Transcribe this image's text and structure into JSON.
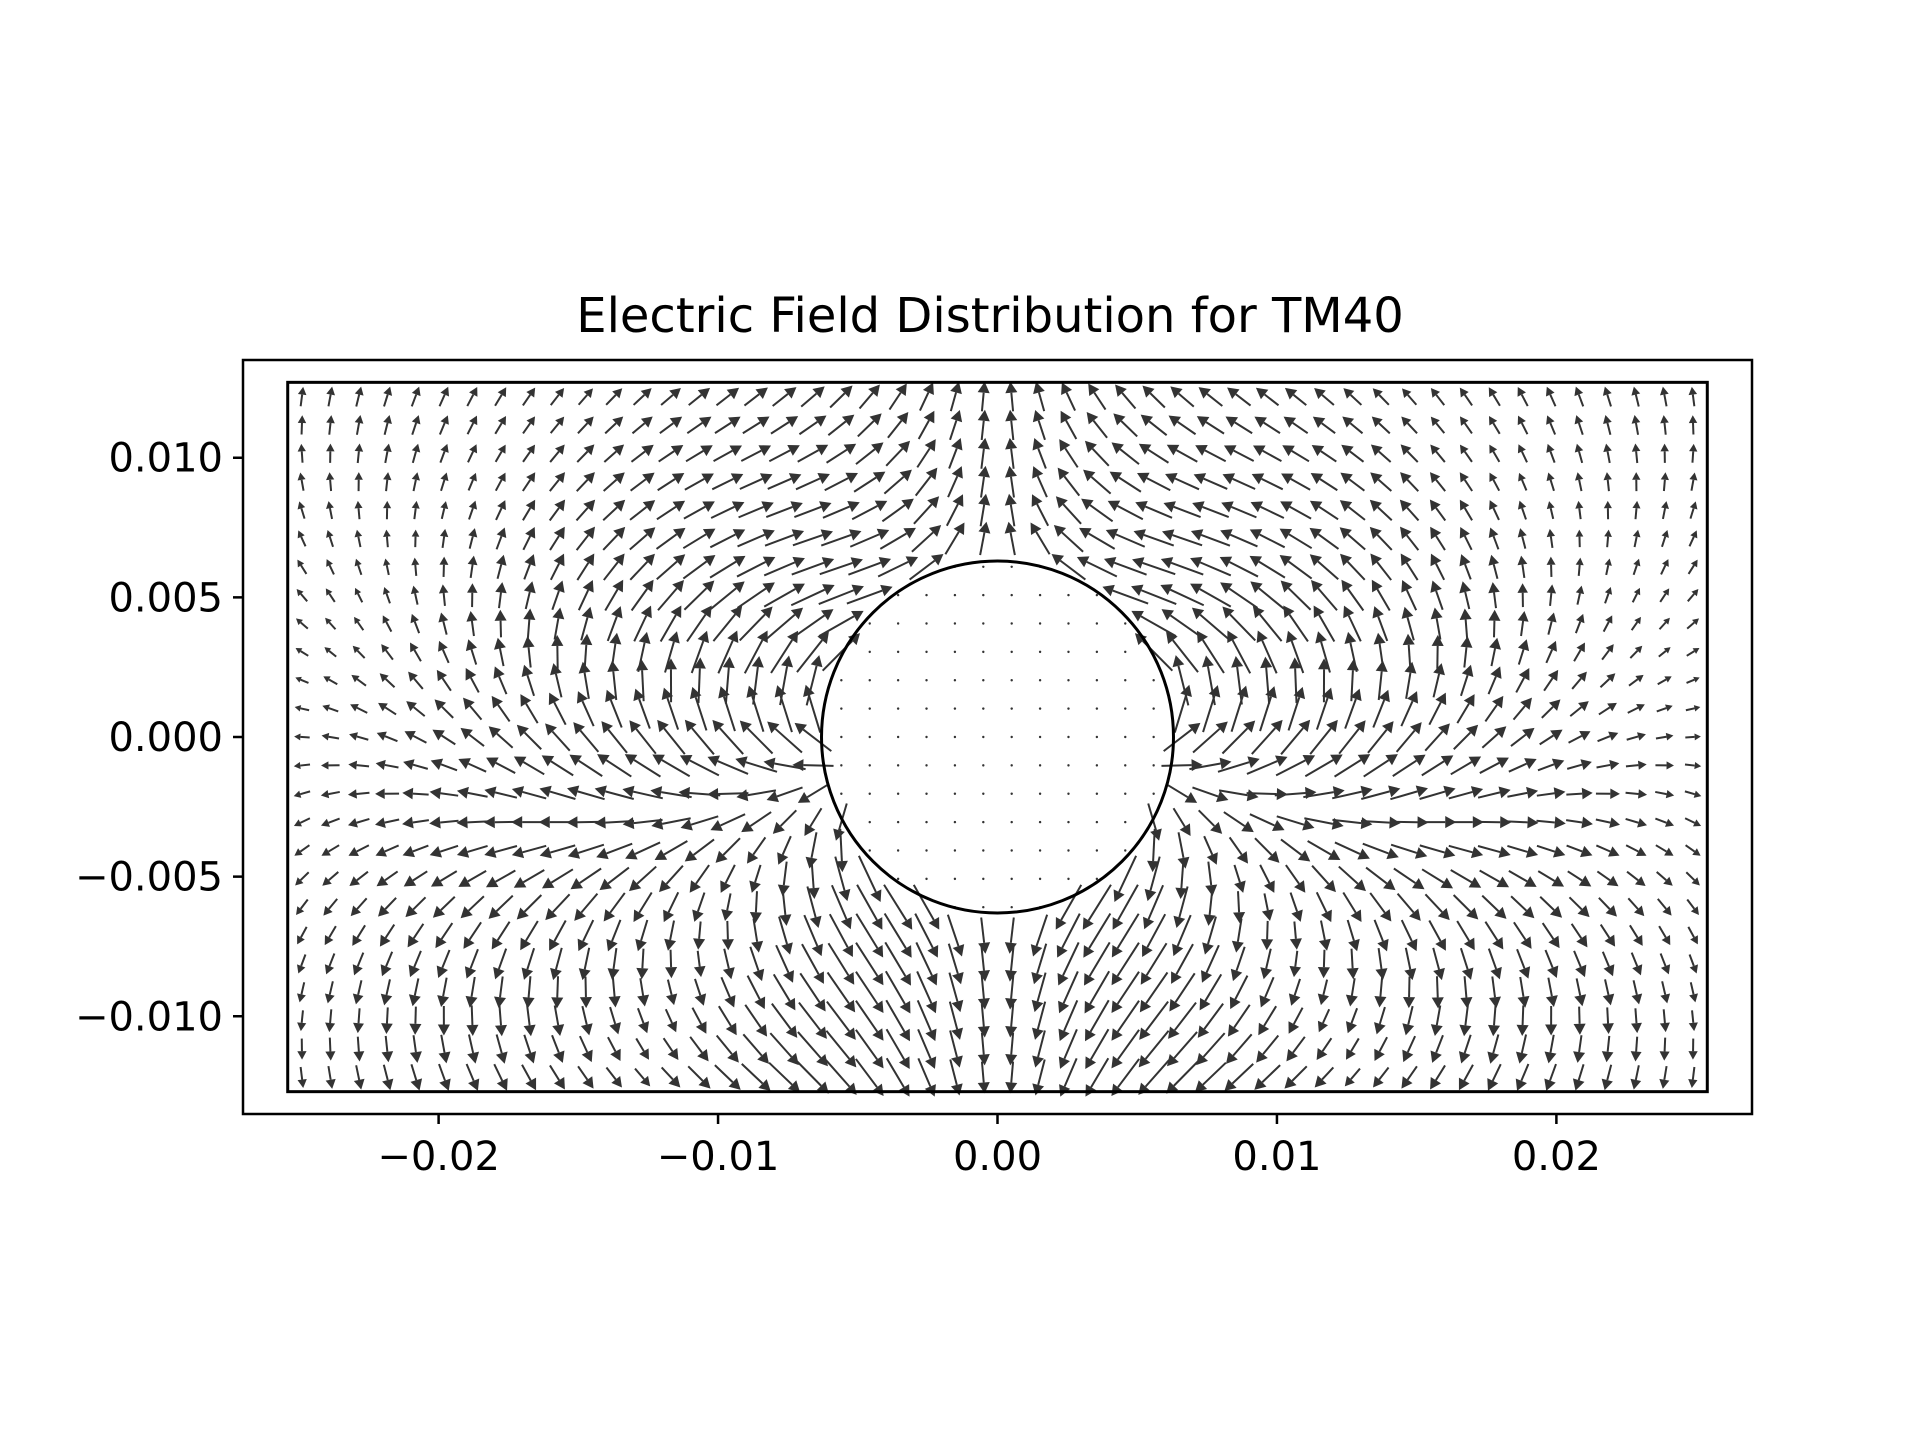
{
  "chart_data": {
    "type": "quiver",
    "title": "Electric Field Distribution for TM40",
    "xlabel": "",
    "ylabel": "",
    "xlim": [
      -0.027,
      0.027
    ],
    "ylim": [
      -0.0135,
      0.0135
    ],
    "grid": false,
    "x_ticks": [
      {
        "value": -0.02,
        "label": "−0.02"
      },
      {
        "value": -0.01,
        "label": "−0.01"
      },
      {
        "value": 0.0,
        "label": "0.00"
      },
      {
        "value": 0.01,
        "label": "0.01"
      },
      {
        "value": 0.02,
        "label": "0.02"
      }
    ],
    "y_ticks": [
      {
        "value": 0.01,
        "label": "0.010"
      },
      {
        "value": 0.005,
        "label": "0.005"
      },
      {
        "value": 0.0,
        "label": "0.000"
      },
      {
        "value": -0.005,
        "label": "−0.005"
      },
      {
        "value": -0.01,
        "label": "−0.010"
      }
    ],
    "waveguide": {
      "x": [
        -0.0254,
        0.0254
      ],
      "y": [
        -0.0127,
        0.0127
      ]
    },
    "dielectric_rod": {
      "center": [
        0.0,
        0.0
      ],
      "radius": 0.0063
    },
    "field_pattern": {
      "mode": "TM40",
      "azimuthal_order": 4,
      "grid_nx": 50,
      "grid_ny": 25
    },
    "colors": {
      "arrows": "#333333",
      "outline": "#000000",
      "background": "#ffffff"
    }
  }
}
